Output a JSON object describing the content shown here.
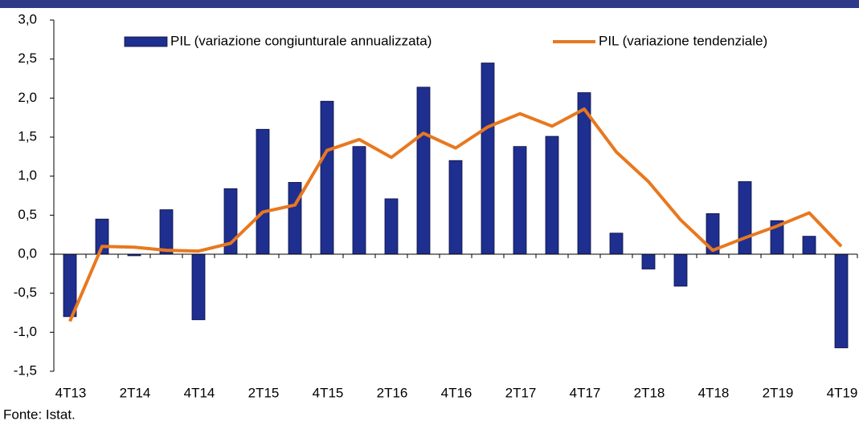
{
  "chart_data": {
    "type": "bar_line",
    "categories": [
      "4T13",
      null,
      "2T14",
      null,
      "4T14",
      null,
      "2T15",
      null,
      "4T15",
      null,
      "2T16",
      null,
      "4T16",
      null,
      "2T17",
      null,
      "4T17",
      null,
      "2T18",
      null,
      "4T18",
      null,
      "2T19",
      null,
      "4T19"
    ],
    "series": [
      {
        "name": "PIL (variazione congiunturale annualizzata)",
        "type": "bar",
        "color": "#1f2f8f",
        "values": [
          -0.8,
          0.45,
          -0.02,
          0.57,
          -0.84,
          0.84,
          1.6,
          0.92,
          1.96,
          1.38,
          0.71,
          2.14,
          1.2,
          2.45,
          1.38,
          1.51,
          2.07,
          0.27,
          -0.19,
          -0.41,
          0.52,
          0.93,
          0.43,
          0.23,
          -1.2
        ]
      },
      {
        "name": "PIL (variazione tendenziale)",
        "type": "line",
        "color": "#e8781f",
        "values": [
          -0.86,
          0.1,
          0.09,
          0.05,
          0.04,
          0.14,
          0.54,
          0.63,
          1.33,
          1.47,
          1.24,
          1.55,
          1.36,
          1.63,
          1.8,
          1.64,
          1.86,
          1.31,
          0.93,
          0.44,
          0.05,
          0.21,
          0.36,
          0.53,
          0.1
        ]
      }
    ],
    "ylim": [
      -1.5,
      3.0
    ],
    "yticks": [
      {
        "value": -1.5,
        "label": "-1,5"
      },
      {
        "value": -1.0,
        "label": "-1,0"
      },
      {
        "value": -0.5,
        "label": "-0,5"
      },
      {
        "value": 0,
        "label": "0,0"
      },
      {
        "value": 0.5,
        "label": "0,5"
      },
      {
        "value": 1.0,
        "label": "1,0"
      },
      {
        "value": 1.5,
        "label": "1,5"
      },
      {
        "value": 2.0,
        "label": "2,0"
      },
      {
        "value": 2.5,
        "label": "2,5"
      },
      {
        "value": 3.0,
        "label": "3,0"
      }
    ],
    "source": "Fonte: Istat."
  }
}
